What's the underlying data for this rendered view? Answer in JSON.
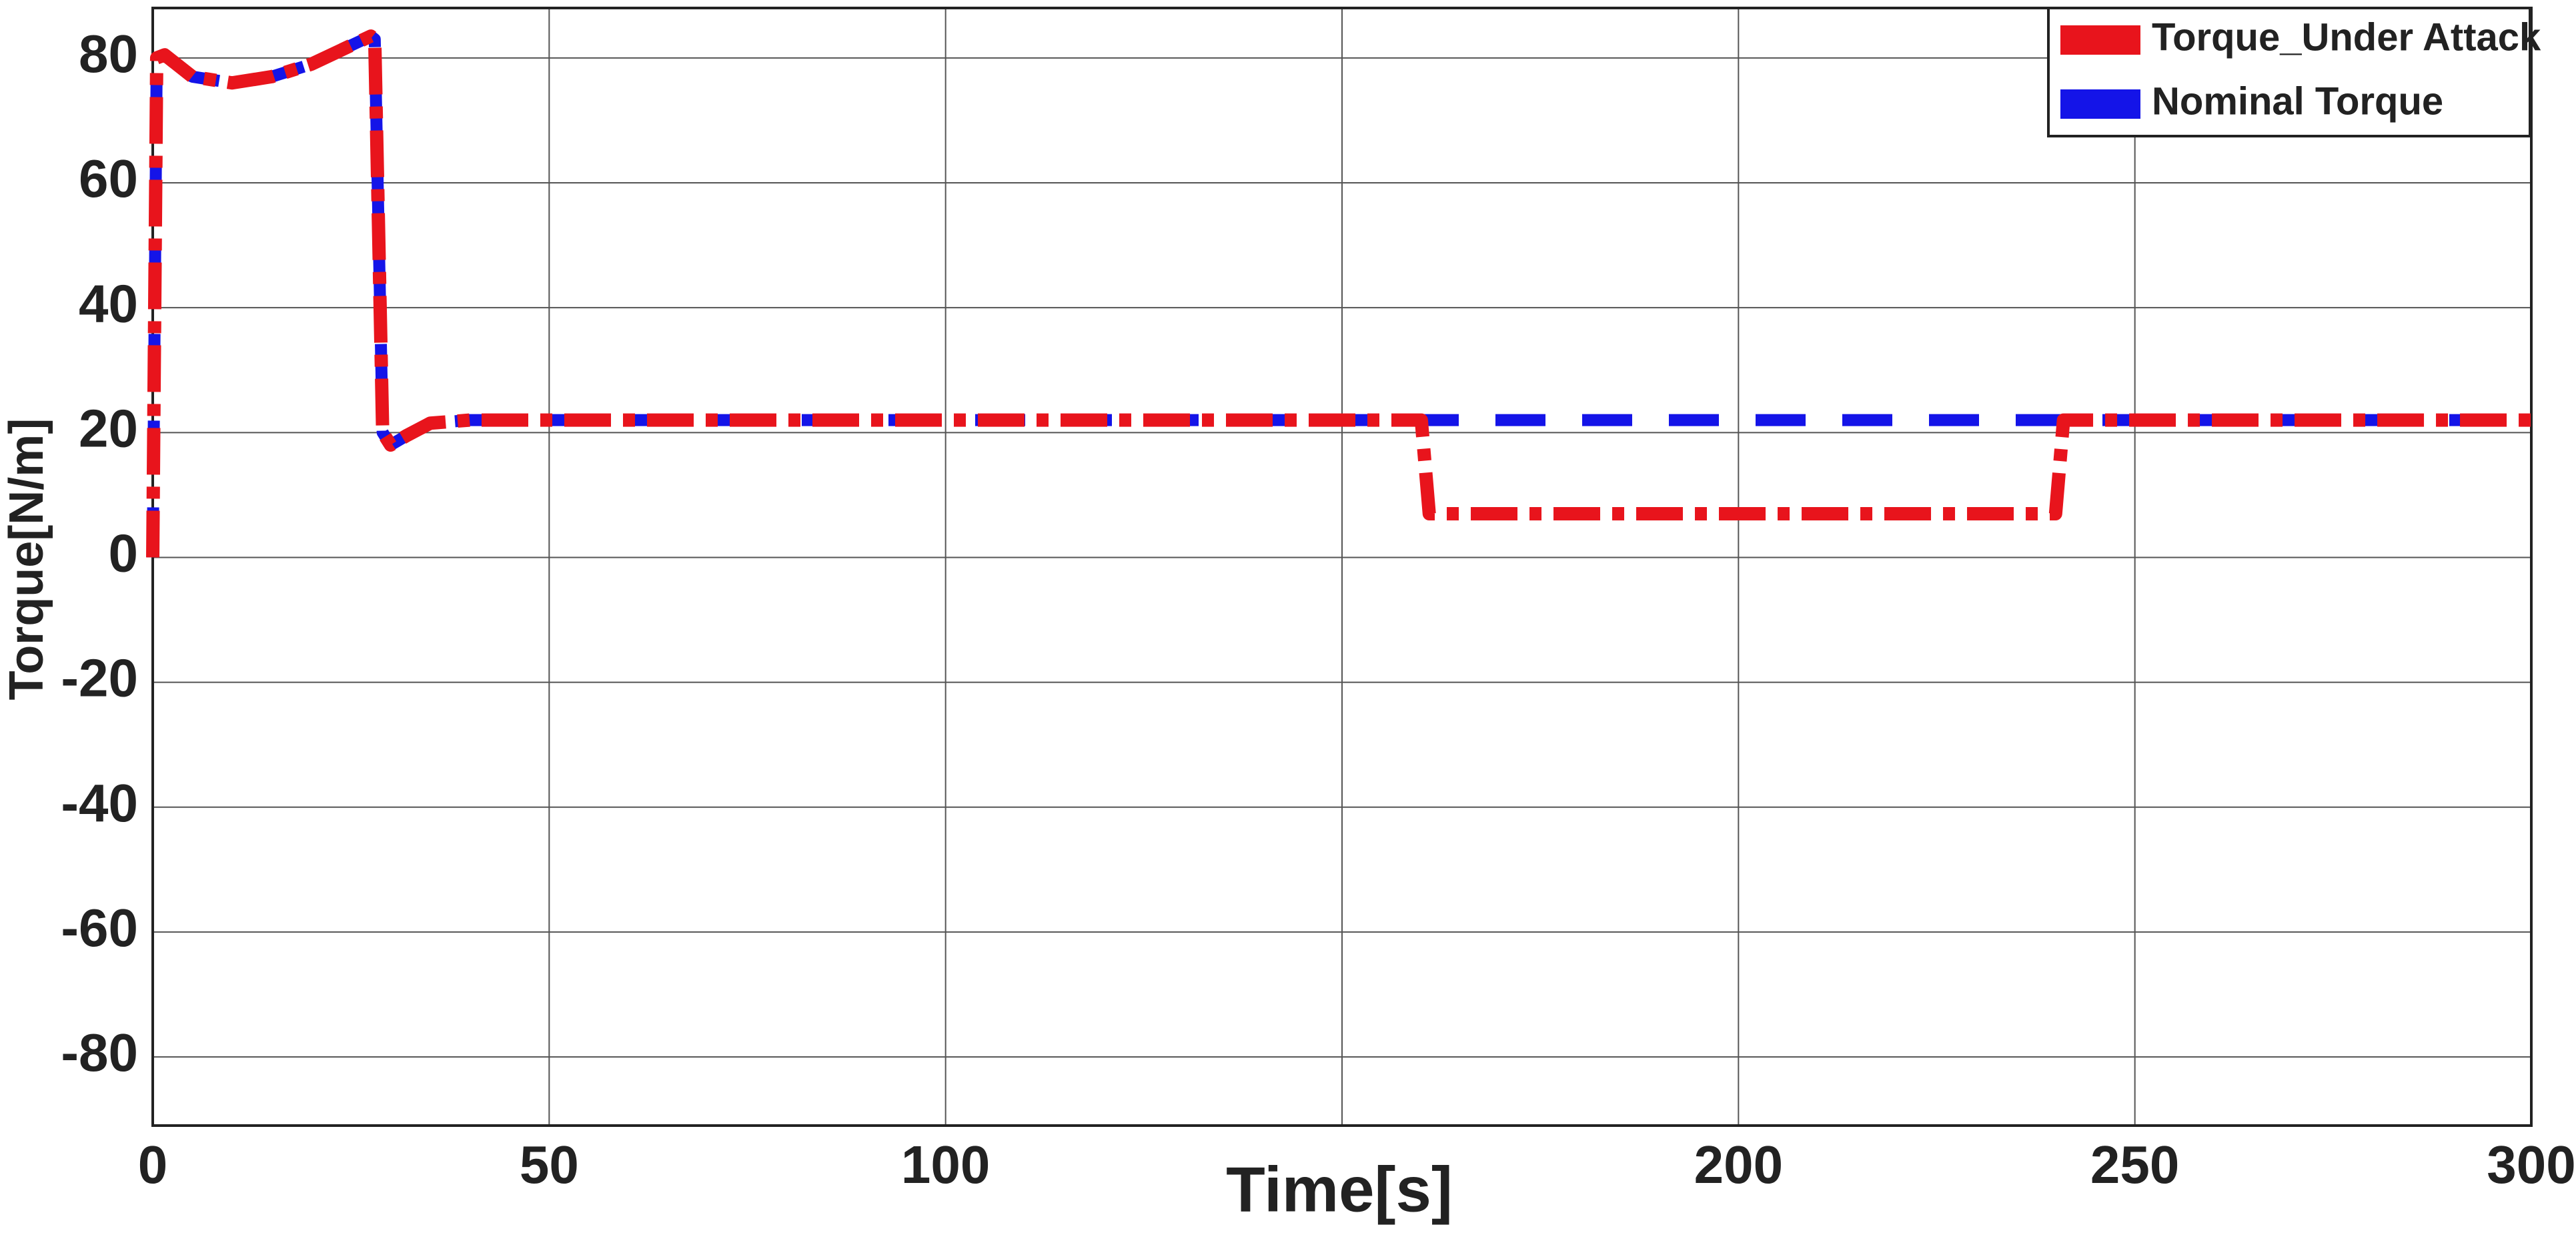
{
  "chart_data": {
    "type": "line",
    "x_label": "Time[s]",
    "y_label": "Torque[N/m]",
    "series": [
      {
        "name": "Torque_Under Attack",
        "color": "#e8141c",
        "x": [
          0,
          0.5,
          1.5,
          5,
          10,
          15,
          20,
          25,
          27.5,
          28,
          29,
          30,
          32,
          35,
          40,
          160,
          161,
          240,
          241,
          300
        ],
        "values": [
          0,
          80,
          80.5,
          77,
          76,
          77,
          79,
          82,
          83.5,
          83,
          20,
          18,
          19.5,
          21.5,
          22,
          22,
          7,
          7,
          22,
          22
        ]
      },
      {
        "name": "Nominal Torque",
        "color": "#1414e8",
        "x": [
          0,
          0.5,
          1.5,
          5,
          10,
          15,
          20,
          25,
          27.5,
          28,
          29,
          30,
          32,
          35,
          40,
          300
        ],
        "values": [
          0,
          80,
          80.5,
          77,
          76,
          77,
          79,
          82,
          83.5,
          83,
          20,
          18,
          19.5,
          21.5,
          22,
          22
        ]
      }
    ],
    "xlim": [
      0,
      300
    ],
    "xticks": [
      0,
      50,
      100,
      {
        "value": 150,
        "label": null
      },
      200,
      250,
      300
    ],
    "ylim": [
      -91,
      88
    ],
    "yticks": [
      -80,
      -60,
      -40,
      -20,
      0,
      20,
      40,
      60,
      80
    ],
    "grid": true,
    "legend": "upper right"
  }
}
